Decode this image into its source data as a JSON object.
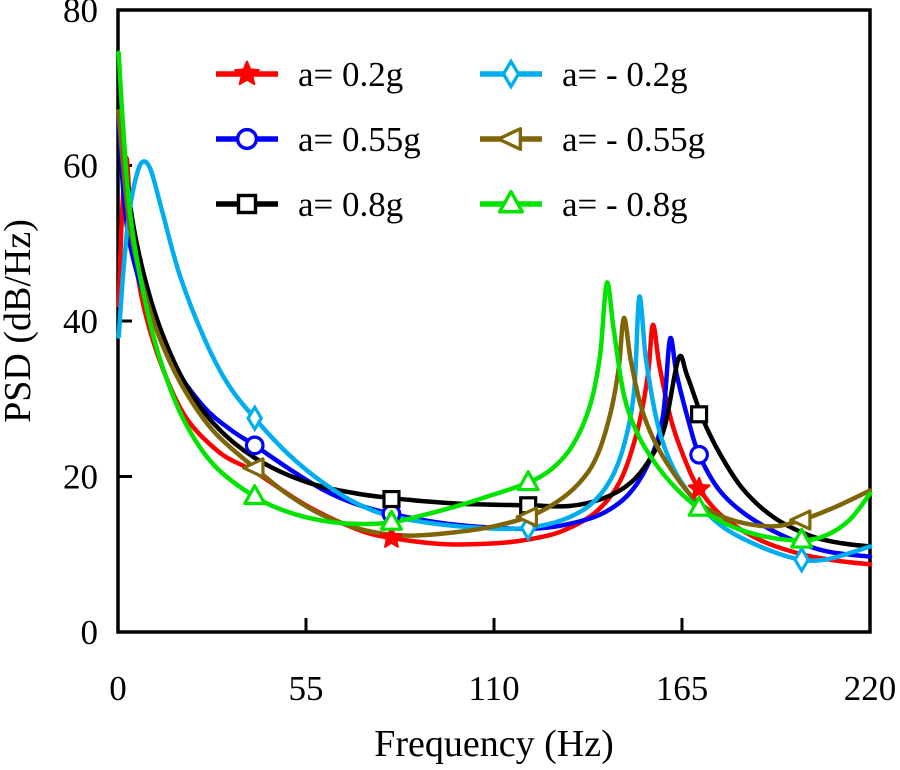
{
  "figure_title": "",
  "chart_data": {
    "type": "line",
    "title": "",
    "xlabel": "Frequency (Hz)",
    "ylabel": "PSD (dB/Hz)",
    "xlim": [
      0,
      220
    ],
    "ylim": [
      0,
      80
    ],
    "x_ticks": [
      0,
      55,
      110,
      165,
      220
    ],
    "y_ticks": [
      0,
      20,
      40,
      60,
      80
    ],
    "grid": false,
    "legend_position": "top-left-inside-two-columns",
    "series": [
      {
        "name": "a= 0.2g",
        "color": "#fe0000",
        "marker": "star",
        "first_peak": {
          "x": 2.4,
          "y": 61
        },
        "second_peak": {
          "x": 156.5,
          "y": 39.5
        },
        "points": [
          [
            0.2,
            42
          ],
          [
            1.2,
            54
          ],
          [
            2.4,
            61
          ],
          [
            3.5,
            55
          ],
          [
            5,
            48
          ],
          [
            8,
            41
          ],
          [
            13,
            34
          ],
          [
            20,
            27.5
          ],
          [
            30,
            23
          ],
          [
            40,
            20.6
          ],
          [
            55,
            16.3
          ],
          [
            70,
            13.2
          ],
          [
            80,
            12.1
          ],
          [
            95,
            11.3
          ],
          [
            110,
            11.4
          ],
          [
            120,
            11.9
          ],
          [
            130,
            13
          ],
          [
            140,
            15.5
          ],
          [
            147,
            19.5
          ],
          [
            152,
            26
          ],
          [
            155,
            33
          ],
          [
            156.5,
            39.5
          ],
          [
            158.5,
            34
          ],
          [
            162,
            27
          ],
          [
            166,
            22
          ],
          [
            170,
            18.4
          ],
          [
            177,
            14.8
          ],
          [
            188,
            11.8
          ],
          [
            200,
            10
          ],
          [
            210,
            9.2
          ],
          [
            220,
            8.7
          ]
        ],
        "marker_points": [
          [
            80,
            12.1
          ],
          [
            170,
            18.4
          ]
        ]
      },
      {
        "name": "a= 0.55g",
        "color": "#0000fe",
        "marker": "circle",
        "first_peak": {
          "x": 0.4,
          "y": 66
        },
        "second_peak": {
          "x": 161.5,
          "y": 37.7
        },
        "points": [
          [
            0.2,
            66
          ],
          [
            1.5,
            57
          ],
          [
            3,
            51
          ],
          [
            6,
            45.5
          ],
          [
            10,
            40.5
          ],
          [
            16,
            34.5
          ],
          [
            25,
            29
          ],
          [
            33,
            26
          ],
          [
            40,
            24
          ],
          [
            50,
            21
          ],
          [
            60,
            18.3
          ],
          [
            70,
            16.4
          ],
          [
            80,
            15.2
          ],
          [
            95,
            14
          ],
          [
            110,
            13.4
          ],
          [
            122,
            13.3
          ],
          [
            132,
            13.9
          ],
          [
            142,
            15.3
          ],
          [
            150,
            18
          ],
          [
            156,
            22.5
          ],
          [
            159.5,
            28
          ],
          [
            161.5,
            37.7
          ],
          [
            163.5,
            33
          ],
          [
            167,
            27
          ],
          [
            170,
            22.8
          ],
          [
            176,
            18.2
          ],
          [
            184,
            15
          ],
          [
            195,
            12.3
          ],
          [
            207,
            10.4
          ],
          [
            220,
            9.7
          ]
        ],
        "marker_points": [
          [
            40,
            24
          ],
          [
            80,
            15.2
          ],
          [
            170,
            22.8
          ]
        ]
      },
      {
        "name": "a= 0.8g",
        "color": "#000000",
        "marker": "square",
        "first_peak": {
          "x": 0.4,
          "y": 73
        },
        "second_peak": {
          "x": 164,
          "y": 35.2
        },
        "points": [
          [
            0.2,
            73
          ],
          [
            1.5,
            64
          ],
          [
            3.5,
            55
          ],
          [
            7,
            47
          ],
          [
            12,
            39.5
          ],
          [
            19,
            32.5
          ],
          [
            28,
            26.8
          ],
          [
            40,
            22.4
          ],
          [
            55,
            19.3
          ],
          [
            70,
            17.8
          ],
          [
            85,
            17
          ],
          [
            100,
            16.5
          ],
          [
            120,
            16.3
          ],
          [
            132,
            16.2
          ],
          [
            142,
            17.2
          ],
          [
            150,
            19.2
          ],
          [
            156,
            22.5
          ],
          [
            160,
            26.5
          ],
          [
            164,
            35.2
          ],
          [
            166.5,
            33
          ],
          [
            171,
            27.5
          ],
          [
            176,
            23
          ],
          [
            183,
            18.3
          ],
          [
            192,
            14.7
          ],
          [
            203,
            12.3
          ],
          [
            212,
            11.4
          ],
          [
            220,
            11
          ]
        ],
        "marker_points": [
          [
            80,
            17.1
          ],
          [
            120,
            16.3
          ],
          [
            170,
            28
          ]
        ]
      },
      {
        "name": "a= - 0.2g",
        "color": "#00aeef",
        "marker": "diamond",
        "first_peak": {
          "x": 7,
          "y": 60.4
        },
        "second_peak": {
          "x": 152.5,
          "y": 43.1
        },
        "points": [
          [
            0.2,
            38
          ],
          [
            1.5,
            46
          ],
          [
            3,
            53
          ],
          [
            5,
            58
          ],
          [
            7,
            60.4
          ],
          [
            9.5,
            59.5
          ],
          [
            13,
            54
          ],
          [
            18,
            46
          ],
          [
            25,
            38
          ],
          [
            32,
            32
          ],
          [
            40,
            27.5
          ],
          [
            50,
            22.8
          ],
          [
            60,
            19.2
          ],
          [
            70,
            16.5
          ],
          [
            80,
            14.9
          ],
          [
            95,
            13.8
          ],
          [
            110,
            13.3
          ],
          [
            120,
            13.4
          ],
          [
            130,
            14.4
          ],
          [
            138,
            16.3
          ],
          [
            144,
            19.5
          ],
          [
            148,
            24
          ],
          [
            151,
            31
          ],
          [
            152.5,
            43.1
          ],
          [
            154.5,
            35
          ],
          [
            158,
            26.5
          ],
          [
            162,
            21.5
          ],
          [
            166,
            18.5
          ],
          [
            170,
            16.3
          ],
          [
            178,
            13.2
          ],
          [
            190,
            10.6
          ],
          [
            200,
            9.3
          ],
          [
            208,
            9.4
          ],
          [
            220,
            11
          ]
        ],
        "marker_points": [
          [
            40,
            27.5
          ],
          [
            120,
            13.4
          ],
          [
            200,
            9.3
          ]
        ]
      },
      {
        "name": "a= - 0.55g",
        "color": "#7e6608",
        "marker": "triangle-left",
        "first_peak": {
          "x": 0.4,
          "y": 67
        },
        "second_peak": {
          "x": 148,
          "y": 40.4
        },
        "points": [
          [
            0.2,
            67
          ],
          [
            1.5,
            60
          ],
          [
            3.5,
            52
          ],
          [
            7,
            45
          ],
          [
            12,
            38
          ],
          [
            19,
            31.5
          ],
          [
            28,
            25.8
          ],
          [
            40,
            21.1
          ],
          [
            50,
            17.6
          ],
          [
            60,
            15
          ],
          [
            72,
            13.1
          ],
          [
            85,
            12.4
          ],
          [
            100,
            12.9
          ],
          [
            110,
            13.6
          ],
          [
            120,
            14.8
          ],
          [
            128,
            16.6
          ],
          [
            135,
            19.2
          ],
          [
            140,
            22.5
          ],
          [
            144,
            28
          ],
          [
            146.5,
            34
          ],
          [
            148,
            40.4
          ],
          [
            150,
            35
          ],
          [
            153,
            29
          ],
          [
            157,
            24.5
          ],
          [
            162,
            20.8
          ],
          [
            168,
            17.4
          ],
          [
            175,
            15.2
          ],
          [
            183,
            14
          ],
          [
            192,
            13.6
          ],
          [
            200,
            14.4
          ],
          [
            210,
            16.1
          ],
          [
            220,
            18.2
          ]
        ],
        "marker_points": [
          [
            40,
            21.1
          ],
          [
            120,
            14.8
          ],
          [
            200,
            14.4
          ]
        ]
      },
      {
        "name": "a= - 0.8g",
        "color": "#00e400",
        "marker": "triangle-up",
        "first_peak": {
          "x": 0.4,
          "y": 74.5
        },
        "second_peak": {
          "x": 143,
          "y": 44.9
        },
        "points": [
          [
            0.2,
            74.5
          ],
          [
            1.5,
            65
          ],
          [
            3.5,
            54
          ],
          [
            7,
            44.5
          ],
          [
            12,
            35.5
          ],
          [
            19,
            27.5
          ],
          [
            28,
            21.5
          ],
          [
            40,
            17.4
          ],
          [
            50,
            15.4
          ],
          [
            60,
            14.3
          ],
          [
            70,
            13.9
          ],
          [
            80,
            14.1
          ],
          [
            90,
            15.1
          ],
          [
            100,
            16.3
          ],
          [
            110,
            17.7
          ],
          [
            120,
            19.2
          ],
          [
            127,
            21
          ],
          [
            133,
            24
          ],
          [
            138,
            29
          ],
          [
            141,
            35.5
          ],
          [
            143,
            44.9
          ],
          [
            145,
            39
          ],
          [
            148,
            30.5
          ],
          [
            152,
            25.5
          ],
          [
            157,
            21.8
          ],
          [
            163,
            18.6
          ],
          [
            170,
            15.9
          ],
          [
            180,
            13.5
          ],
          [
            190,
            12.2
          ],
          [
            200,
            11.8
          ],
          [
            207,
            12.4
          ],
          [
            214,
            14.4
          ],
          [
            220,
            17.8
          ]
        ],
        "marker_points": [
          [
            40,
            17.4
          ],
          [
            80,
            14.1
          ],
          [
            120,
            19.2
          ],
          [
            170,
            15.9
          ],
          [
            200,
            11.8
          ]
        ]
      }
    ]
  }
}
